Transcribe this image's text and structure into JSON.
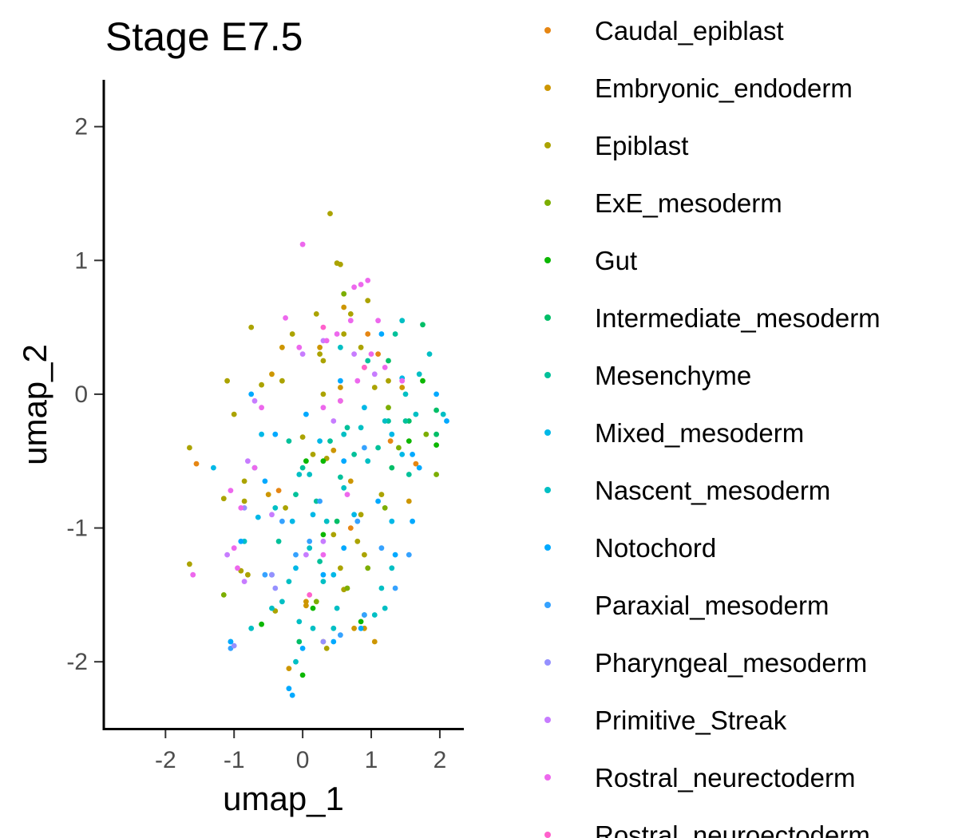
{
  "chart_data": {
    "type": "scatter",
    "title": "Stage E7.5",
    "xlabel": "umap_1",
    "ylabel": "umap_2",
    "xlim": [
      -2.9,
      2.35
    ],
    "ylim": [
      -2.5,
      2.35
    ],
    "xticks": [
      -2,
      -1,
      0,
      1,
      2
    ],
    "yticks": [
      -2,
      -1,
      0,
      1,
      2
    ],
    "xtick_labels": [
      "-2",
      "-1",
      "0",
      "1",
      "2"
    ],
    "ytick_labels": [
      "-2",
      "-1",
      "0",
      "1",
      "2"
    ],
    "grid": false,
    "legend_position": "right",
    "series": [
      {
        "name": "Caudal_epiblast",
        "color": "#E68613",
        "points": [
          [
            -1.55,
            -0.52
          ],
          [
            -0.35,
            -0.72
          ],
          [
            0.55,
            -0.05
          ],
          [
            1.28,
            -0.35
          ],
          [
            1.65,
            -0.52
          ],
          [
            0.95,
            0.45
          ],
          [
            0.7,
            -1.0
          ],
          [
            1.1,
            0.3
          ]
        ]
      },
      {
        "name": "Embryonic_endoderm",
        "color": "#CD9600",
        "points": [
          [
            -0.3,
            0.35
          ],
          [
            0.6,
            0.65
          ],
          [
            0.05,
            -1.55
          ],
          [
            0.9,
            -1.75
          ],
          [
            0.3,
            -1.85
          ],
          [
            -0.2,
            -2.05
          ],
          [
            0.7,
            -0.65
          ],
          [
            0.25,
            0.35
          ],
          [
            -0.45,
            0.15
          ],
          [
            0.55,
            0.05
          ],
          [
            0.9,
            0.2
          ],
          [
            1.45,
            0.05
          ],
          [
            0.45,
            -0.42
          ],
          [
            1.55,
            -0.8
          ],
          [
            1.05,
            -1.85
          ],
          [
            -0.5,
            -0.75
          ],
          [
            0.75,
            -1.75
          ],
          [
            0.05,
            -1.58
          ]
        ]
      },
      {
        "name": "Epiblast",
        "color": "#ABA300",
        "points": [
          [
            -1.65,
            -0.4
          ],
          [
            -1.1,
            0.1
          ],
          [
            -0.75,
            0.5
          ],
          [
            0.4,
            1.35
          ],
          [
            0.5,
            0.98
          ],
          [
            0.2,
            0.6
          ],
          [
            0.7,
            0.6
          ],
          [
            0.95,
            0.7
          ],
          [
            0.25,
            0.3
          ],
          [
            -0.3,
            0.1
          ],
          [
            0.3,
            0.25
          ],
          [
            -0.15,
            0.45
          ],
          [
            0.85,
            0.35
          ],
          [
            -1.0,
            -0.15
          ],
          [
            -0.85,
            -0.8
          ],
          [
            0.55,
            0.97
          ],
          [
            1.25,
            0.1
          ],
          [
            0.3,
            0.0
          ],
          [
            -0.6,
            0.07
          ],
          [
            -0.25,
            -0.85
          ],
          [
            0.35,
            -0.48
          ],
          [
            0.6,
            -1.46
          ],
          [
            -0.8,
            -1.35
          ],
          [
            0.8,
            -1.1
          ],
          [
            0.15,
            -0.45
          ],
          [
            -1.65,
            -1.27
          ],
          [
            -0.9,
            -1.32
          ],
          [
            0.0,
            -0.32
          ],
          [
            0.45,
            -1.05
          ],
          [
            -0.4,
            -1.62
          ],
          [
            1.05,
            0.05
          ],
          [
            0.9,
            -1.2
          ],
          [
            0.6,
            0.45
          ],
          [
            1.15,
            -0.75
          ],
          [
            -0.85,
            -0.65
          ],
          [
            0.35,
            -1.9
          ],
          [
            -1.15,
            -0.78
          ],
          [
            0.85,
            -0.9
          ],
          [
            0.55,
            -1.3
          ]
        ]
      },
      {
        "name": "ExE_mesoderm",
        "color": "#7CAE00",
        "points": [
          [
            1.95,
            -0.6
          ],
          [
            1.8,
            -0.3
          ],
          [
            1.25,
            -0.1
          ],
          [
            1.4,
            -0.4
          ],
          [
            0.65,
            -1.45
          ],
          [
            0.2,
            -1.55
          ],
          [
            -1.15,
            -1.5
          ],
          [
            1.2,
            -0.85
          ],
          [
            0.6,
            0.75
          ],
          [
            0.95,
            -1.3
          ]
        ]
      },
      {
        "name": "Gut",
        "color": "#0CB702",
        "points": [
          [
            0.0,
            -2.1
          ],
          [
            0.15,
            -1.6
          ],
          [
            -0.6,
            -1.72
          ],
          [
            0.85,
            -1.7
          ],
          [
            0.3,
            -1.05
          ],
          [
            1.95,
            -0.38
          ],
          [
            1.75,
            0.1
          ],
          [
            0.05,
            -0.5
          ],
          [
            0.3,
            -0.5
          ],
          [
            1.55,
            -0.35
          ]
        ]
      },
      {
        "name": "Intermediate_mesoderm",
        "color": "#00BE67",
        "points": [
          [
            1.95,
            -0.3
          ],
          [
            1.75,
            0.52
          ],
          [
            1.55,
            -0.2
          ],
          [
            1.3,
            -0.55
          ],
          [
            0.5,
            -0.95
          ],
          [
            -0.05,
            -1.85
          ],
          [
            0.9,
            -1.65
          ],
          [
            1.95,
            -0.12
          ],
          [
            1.25,
            0.25
          ]
        ]
      },
      {
        "name": "Mesenchyme",
        "color": "#00C19A",
        "points": [
          [
            1.35,
            0.45
          ],
          [
            0.95,
            0.25
          ],
          [
            0.4,
            -0.35
          ],
          [
            -0.2,
            -0.35
          ],
          [
            1.25,
            -0.2
          ],
          [
            0.65,
            -0.25
          ],
          [
            0.0,
            -0.55
          ],
          [
            1.55,
            -0.6
          ],
          [
            0.2,
            -0.8
          ],
          [
            -0.35,
            -1.1
          ],
          [
            0.75,
            -0.45
          ],
          [
            0.25,
            -1.25
          ],
          [
            -0.1,
            -0.75
          ],
          [
            1.1,
            -0.4
          ],
          [
            1.5,
            -0.2
          ],
          [
            0.55,
            -0.62
          ]
        ]
      },
      {
        "name": "Mixed_mesoderm",
        "color": "#00B8E7",
        "points": [
          [
            -1.3,
            -0.55
          ],
          [
            -0.6,
            -0.3
          ],
          [
            0.25,
            -0.35
          ],
          [
            0.9,
            -0.1
          ],
          [
            1.45,
            0.12
          ],
          [
            -0.1,
            -1.3
          ],
          [
            0.45,
            -1.35
          ],
          [
            0.15,
            -0.9
          ],
          [
            1.3,
            -0.95
          ],
          [
            -0.65,
            -0.92
          ],
          [
            -0.15,
            -0.95
          ],
          [
            0.75,
            -0.9
          ],
          [
            1.3,
            -0.3
          ],
          [
            1.45,
            -0.45
          ]
        ]
      },
      {
        "name": "Nascent_mesoderm",
        "color": "#00BFC4",
        "points": [
          [
            1.7,
            0.15
          ],
          [
            1.5,
            0.0
          ],
          [
            1.2,
            -0.2
          ],
          [
            0.95,
            -0.5
          ],
          [
            0.6,
            -0.7
          ],
          [
            0.35,
            -0.95
          ],
          [
            0.1,
            -1.15
          ],
          [
            -0.2,
            -1.4
          ],
          [
            -0.45,
            -1.6
          ],
          [
            -0.75,
            -1.75
          ],
          [
            -1.05,
            -1.85
          ],
          [
            1.65,
            -0.15
          ],
          [
            1.2,
            -1.6
          ],
          [
            0.45,
            -1.75
          ],
          [
            -0.1,
            -2.0
          ],
          [
            0.6,
            -0.3
          ],
          [
            0.1,
            -0.6
          ],
          [
            -0.4,
            -0.85
          ],
          [
            -0.7,
            -0.55
          ],
          [
            1.05,
            -1.65
          ],
          [
            1.85,
            0.3
          ],
          [
            1.45,
            0.55
          ],
          [
            0.55,
            0.35
          ],
          [
            -0.05,
            -0.6
          ],
          [
            -0.3,
            -1.55
          ],
          [
            0.3,
            -1.4
          ],
          [
            1.3,
            -1.3
          ],
          [
            -0.85,
            -1.1
          ],
          [
            0.5,
            -1.6
          ],
          [
            2.05,
            -0.15
          ],
          [
            1.15,
            -1.45
          ],
          [
            0.85,
            -0.25
          ],
          [
            0.15,
            -1.75
          ],
          [
            -0.45,
            -1.35
          ],
          [
            -0.05,
            -1.7
          ]
        ]
      },
      {
        "name": "Notochord",
        "color": "#00A9FF",
        "points": [
          [
            2.1,
            -0.2
          ],
          [
            1.95,
            0.0
          ],
          [
            1.6,
            -0.45
          ],
          [
            1.1,
            -0.8
          ],
          [
            0.6,
            -1.15
          ],
          [
            0.3,
            -1.35
          ],
          [
            0.0,
            -1.9
          ],
          [
            -0.15,
            -2.25
          ],
          [
            -0.9,
            -1.1
          ],
          [
            -1.05,
            -1.85
          ],
          [
            1.35,
            -1.2
          ],
          [
            0.85,
            -1.75
          ],
          [
            0.45,
            -1.85
          ],
          [
            -0.4,
            -0.3
          ],
          [
            -0.75,
            0.0
          ],
          [
            0.05,
            -0.15
          ],
          [
            1.15,
            0.45
          ],
          [
            0.55,
            0.1
          ],
          [
            1.6,
            -0.95
          ],
          [
            -0.55,
            -0.65
          ],
          [
            -0.2,
            -2.2
          ],
          [
            0.6,
            -0.5
          ],
          [
            1.7,
            -0.55
          ]
        ]
      },
      {
        "name": "Paraxial_mesoderm",
        "color": "#35A2FF",
        "points": [
          [
            1.55,
            -1.2
          ],
          [
            1.35,
            -1.45
          ],
          [
            0.9,
            -1.65
          ],
          [
            0.55,
            -1.8
          ],
          [
            0.1,
            -1.1
          ],
          [
            -0.3,
            -0.95
          ],
          [
            -0.1,
            -1.2
          ],
          [
            -1.05,
            -1.9
          ],
          [
            1.15,
            -1.15
          ],
          [
            0.25,
            -0.8
          ],
          [
            0.8,
            -0.95
          ],
          [
            -0.55,
            -1.35
          ],
          [
            0.9,
            -0.4
          ]
        ]
      },
      {
        "name": "Pharyngeal_mesoderm",
        "color": "#9590FF",
        "points": [
          [
            -0.4,
            -1.45
          ],
          [
            -1.0,
            -1.88
          ],
          [
            -0.45,
            -1.35
          ],
          [
            -0.85,
            -0.85
          ],
          [
            0.3,
            -1.85
          ]
        ]
      },
      {
        "name": "Primitive_Streak",
        "color": "#C77CFF",
        "points": [
          [
            0.3,
            0.4
          ],
          [
            0.0,
            0.3
          ],
          [
            0.75,
            0.3
          ],
          [
            -0.7,
            -0.05
          ],
          [
            -0.8,
            -0.5
          ],
          [
            -0.45,
            -0.9
          ],
          [
            0.05,
            -1.2
          ],
          [
            1.05,
            0.15
          ],
          [
            0.45,
            -0.2
          ],
          [
            -1.1,
            -1.2
          ],
          [
            0.3,
            -1.1
          ],
          [
            -0.85,
            -1.4
          ]
        ]
      },
      {
        "name": "Rostral_neurectoderm",
        "color": "#ED68ED",
        "points": [
          [
            0.0,
            1.12
          ],
          [
            0.85,
            0.82
          ],
          [
            0.75,
            0.8
          ],
          [
            0.95,
            0.85
          ],
          [
            -0.25,
            0.57
          ],
          [
            0.35,
            0.4
          ],
          [
            0.5,
            0.45
          ],
          [
            1.1,
            0.55
          ],
          [
            1.45,
            0.1
          ],
          [
            0.3,
            -0.1
          ],
          [
            -0.05,
            0.35
          ],
          [
            -0.6,
            -0.1
          ],
          [
            -0.7,
            -0.55
          ],
          [
            -1.05,
            -0.72
          ],
          [
            -1.0,
            -1.15
          ],
          [
            -1.6,
            -1.35
          ],
          [
            0.55,
            -0.05
          ],
          [
            0.8,
            0.1
          ],
          [
            1.0,
            0.3
          ],
          [
            0.7,
            0.55
          ],
          [
            -0.9,
            -0.85
          ],
          [
            0.3,
            -1.2
          ],
          [
            0.65,
            -0.75
          ],
          [
            -0.95,
            -1.3
          ],
          [
            1.2,
            0.2
          ]
        ]
      },
      {
        "name": "Rostral_neuroectoderm",
        "color": "#FF61CC",
        "points": [
          [
            0.1,
            -1.5
          ],
          [
            0.9,
            0.2
          ],
          [
            0.3,
            0.5
          ]
        ]
      }
    ]
  }
}
